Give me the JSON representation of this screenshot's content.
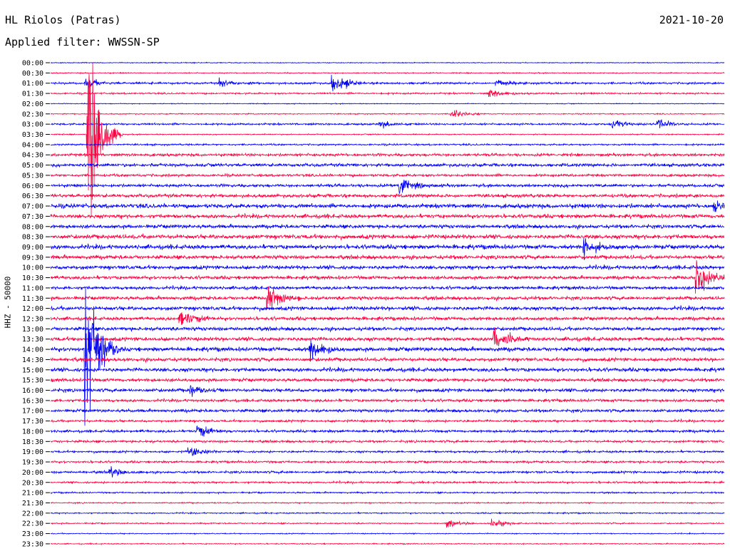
{
  "header": {
    "station": "HL Riolos (Patras)",
    "date": "2021-10-20",
    "filter": "Applied filter: WWSSN-SP"
  },
  "chart_data": {
    "type": "line",
    "title": "HL Riolos (Patras)",
    "ylabel": "HHZ - 50000",
    "xlabel": "",
    "trace_colors": [
      "#0000ff",
      "#ff0040"
    ],
    "tick_labels": [
      "00:00",
      "00:30",
      "01:00",
      "01:30",
      "02:00",
      "02:30",
      "03:00",
      "03:30",
      "04:00",
      "04:30",
      "05:00",
      "05:30",
      "06:00",
      "06:30",
      "07:00",
      "07:30",
      "08:00",
      "08:30",
      "09:00",
      "09:30",
      "10:00",
      "10:30",
      "11:00",
      "11:30",
      "12:00",
      "12:30",
      "13:00",
      "13:30",
      "14:00",
      "14:30",
      "15:00",
      "15:30",
      "16:00",
      "16:30",
      "17:00",
      "17:30",
      "18:00",
      "18:30",
      "19:00",
      "19:30",
      "20:00",
      "20:30",
      "21:00",
      "21:30",
      "22:00",
      "22:30",
      "23:00",
      "23:30"
    ],
    "trace_span_minutes": 30,
    "noise_level": [
      0.4,
      0.5,
      1.0,
      0.8,
      0.4,
      0.5,
      0.9,
      0.5,
      0.8,
      1.3,
      1.5,
      1.2,
      1.4,
      1.6,
      2.0,
      1.8,
      1.7,
      2.0,
      2.0,
      1.8,
      1.8,
      1.6,
      1.5,
      1.6,
      1.8,
      1.6,
      1.7,
      1.8,
      1.9,
      1.7,
      1.8,
      1.5,
      1.6,
      1.3,
      1.4,
      1.1,
      1.2,
      1.1,
      1.0,
      1.0,
      1.1,
      0.9,
      0.7,
      0.6,
      0.6,
      0.6,
      0.5,
      0.5
    ],
    "events": [
      {
        "trace": "01:00",
        "minute": 1.5,
        "amplitude": 8
      },
      {
        "trace": "01:00",
        "minute": 7.5,
        "amplitude": 6
      },
      {
        "trace": "01:00",
        "minute": 12.5,
        "amplitude": 18
      },
      {
        "trace": "01:00",
        "minute": 19.8,
        "amplitude": 6
      },
      {
        "trace": "01:30",
        "minute": 19.5,
        "amplitude": 8
      },
      {
        "trace": "02:30",
        "minute": 17.8,
        "amplitude": 9
      },
      {
        "trace": "03:00",
        "minute": 14.6,
        "amplitude": 6
      },
      {
        "trace": "03:00",
        "minute": 25.0,
        "amplitude": 7
      },
      {
        "trace": "03:00",
        "minute": 27.0,
        "amplitude": 8
      },
      {
        "trace": "03:30",
        "minute": 1.6,
        "amplitude": 175
      },
      {
        "trace": "06:00",
        "minute": 15.5,
        "amplitude": 14
      },
      {
        "trace": "07:00",
        "minute": 29.5,
        "amplitude": 12
      },
      {
        "trace": "09:00",
        "minute": 23.7,
        "amplitude": 14
      },
      {
        "trace": "10:30",
        "minute": 28.7,
        "amplitude": 30
      },
      {
        "trace": "11:30",
        "minute": 9.6,
        "amplitude": 25
      },
      {
        "trace": "12:30",
        "minute": 5.7,
        "amplitude": 16
      },
      {
        "trace": "13:30",
        "minute": 19.7,
        "amplitude": 20
      },
      {
        "trace": "14:00",
        "minute": 11.5,
        "amplitude": 20
      },
      {
        "trace": "14:00",
        "minute": 1.5,
        "amplitude": 150
      },
      {
        "trace": "16:00",
        "minute": 6.2,
        "amplitude": 8
      },
      {
        "trace": "18:00",
        "minute": 6.5,
        "amplitude": 10
      },
      {
        "trace": "19:00",
        "minute": 6.1,
        "amplitude": 8
      },
      {
        "trace": "20:00",
        "minute": 2.6,
        "amplitude": 7
      },
      {
        "trace": "22:30",
        "minute": 17.6,
        "amplitude": 5
      },
      {
        "trace": "22:30",
        "minute": 19.6,
        "amplitude": 7
      }
    ]
  }
}
